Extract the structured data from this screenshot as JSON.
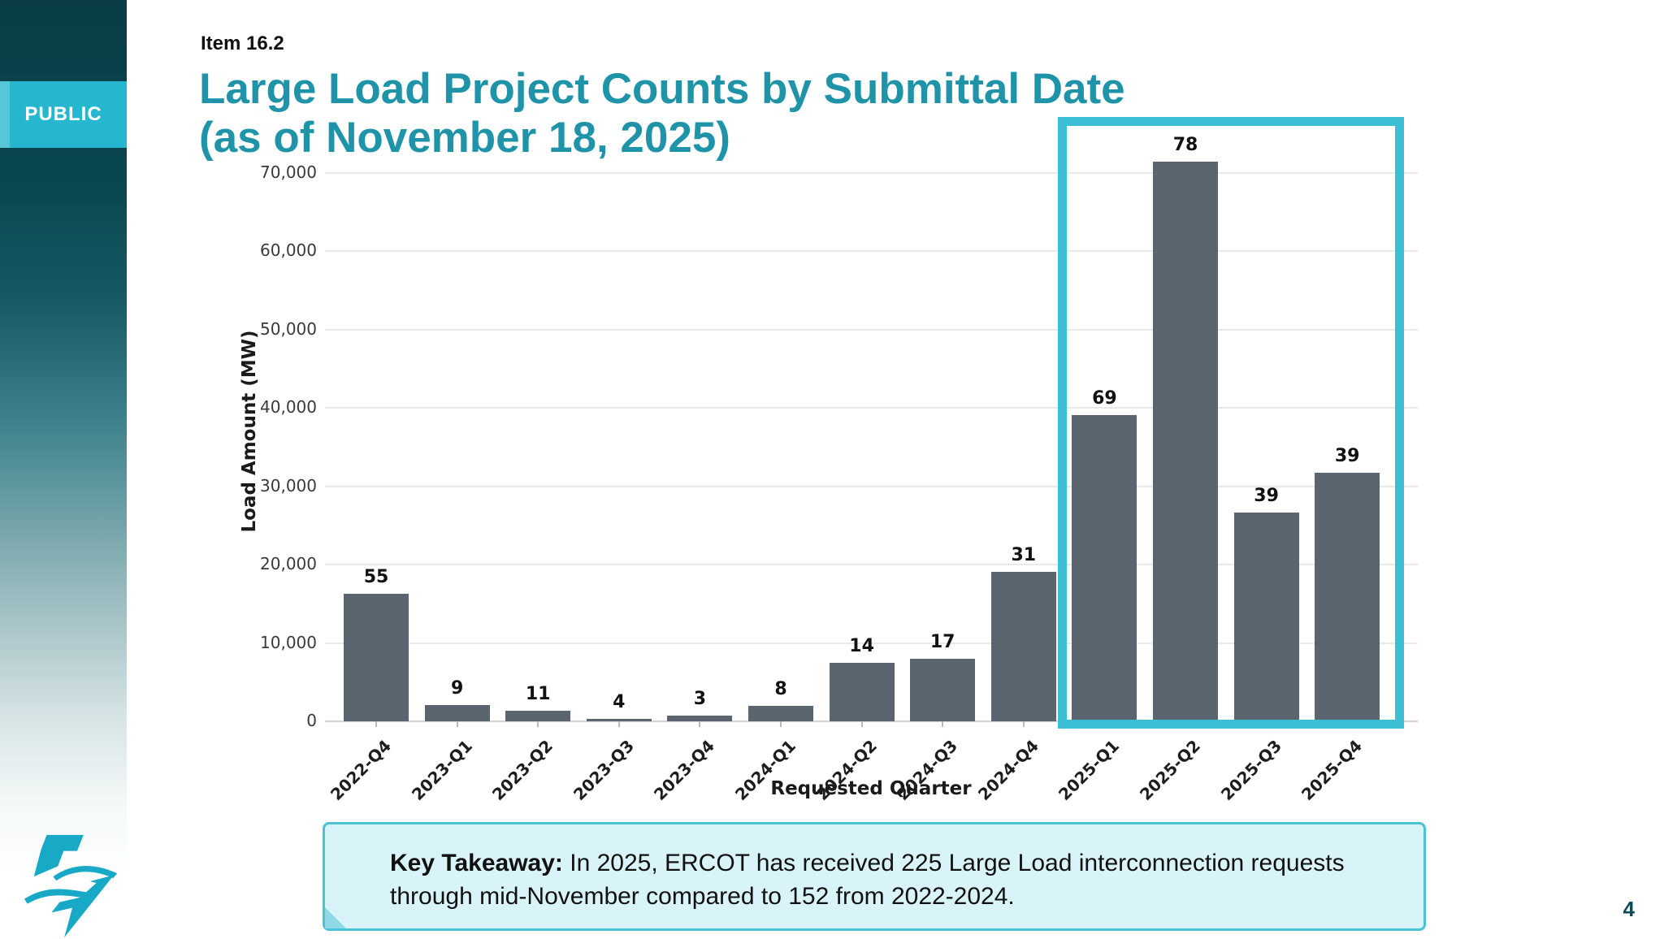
{
  "slide": {
    "classification": "PUBLIC",
    "item_label": "Item 16.2",
    "title": "Large Load Project Counts by Submittal Date\n(as of November 18, 2025)",
    "page_number": "4",
    "takeaway_lead": "Key Takeaway:",
    "takeaway_rest": " In 2025, ERCOT has received 225 Large Load interconnection requests through mid-November compared to 152 from 2022-2024."
  },
  "chart_data": {
    "type": "bar",
    "title": "",
    "xlabel": "Requested Quarter",
    "ylabel": "Load Amount (MW)",
    "categories": [
      "2022-Q4",
      "2023-Q1",
      "2023-Q2",
      "2023-Q3",
      "2023-Q4",
      "2024-Q1",
      "2024-Q2",
      "2024-Q3",
      "2024-Q4",
      "2025-Q1",
      "2025-Q2",
      "2025-Q3",
      "2025-Q4"
    ],
    "values_mw": [
      16300,
      2100,
      1350,
      320,
      700,
      1950,
      7450,
      8000,
      19100,
      39100,
      71500,
      26650,
      31700
    ],
    "count_labels": [
      55,
      9,
      11,
      4,
      3,
      8,
      14,
      17,
      31,
      69,
      78,
      39,
      39
    ],
    "ylim": [
      0,
      70000
    ],
    "ytick_step": 10000,
    "ytick_labels": [
      "0",
      "10,000",
      "20,000",
      "30,000",
      "40,000",
      "50,000",
      "60,000",
      "70,000"
    ],
    "grid": true,
    "legend": "none",
    "bar_color": "#5a656f",
    "highlight": {
      "quarters": [
        "2025-Q1",
        "2025-Q2",
        "2025-Q3",
        "2025-Q4"
      ],
      "color": "#3cbfd4"
    }
  },
  "colors": {
    "title_teal": "#1f93a8",
    "public_band": "#27b6d0",
    "sidebar_dark": "#0a3d45",
    "takeaway_bg": "#d9f4f9",
    "takeaway_border": "#4cc2d6",
    "page_number": "#0d4a5c",
    "logo": "#18a9c6"
  }
}
